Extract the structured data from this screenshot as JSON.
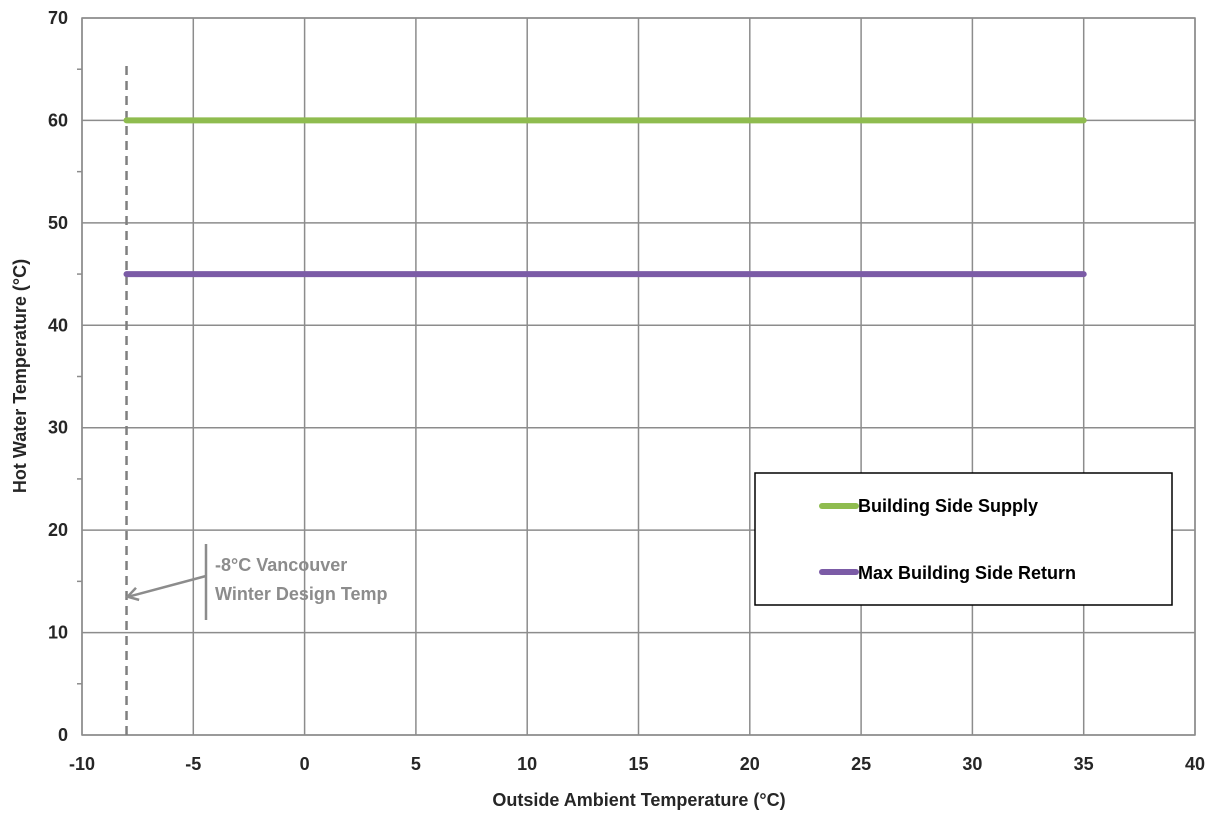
{
  "chart_data": {
    "type": "line",
    "xlabel": "Outside Ambient Temperature (°C)",
    "ylabel": "Hot Water Temperature (°C)",
    "xlim": [
      -10,
      40
    ],
    "ylim": [
      0,
      70
    ],
    "xticks": [
      -10,
      -5,
      0,
      5,
      10,
      15,
      20,
      25,
      30,
      35,
      40
    ],
    "yticks": [
      0,
      10,
      20,
      30,
      40,
      50,
      60,
      70
    ],
    "grid": true,
    "legend_position": "lower-right",
    "series": [
      {
        "name": "Building Side Supply",
        "color": "#8fbc4f",
        "x": [
          -8,
          35
        ],
        "y": [
          60,
          60
        ]
      },
      {
        "name": "Max Building Side Return",
        "color": "#7b5ba6",
        "x": [
          -8,
          35
        ],
        "y": [
          45,
          45
        ]
      }
    ],
    "reference_line": {
      "x": -8,
      "color": "#7f7f7f",
      "style": "dashed"
    },
    "annotation": {
      "lines": [
        "-8°C Vancouver",
        "Winter Design Temp"
      ],
      "color": "#8c8c8c",
      "arrow_target": {
        "x": -8,
        "y": 13.5
      }
    }
  }
}
